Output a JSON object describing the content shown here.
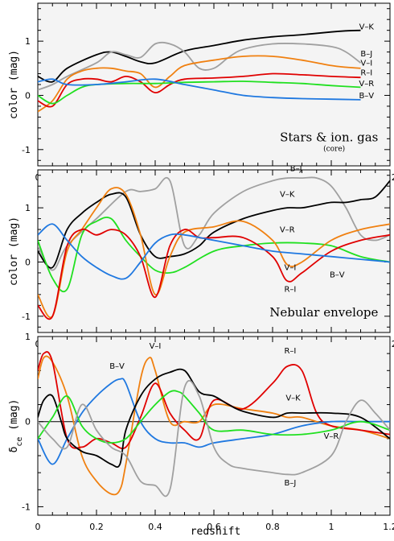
{
  "x_axis_label": "redshift",
  "chart_data": [
    {
      "type": "line",
      "ylabel": "color (mag)",
      "xlim": [
        0,
        1.2
      ],
      "ylim": [
        -1.3,
        1.7
      ],
      "xticks": [
        "0",
        "0.2",
        "0.4",
        "0.6",
        "0.8",
        "1",
        "1.2"
      ],
      "yticks": [
        "-1",
        "0",
        "1"
      ],
      "annotation": "Stars & ion. gas",
      "annotation_sub": "(core)",
      "series": [
        {
          "name": "V–K",
          "color": "#000000",
          "x": [
            0.0,
            0.05,
            0.1,
            0.2,
            0.25,
            0.3,
            0.35,
            0.4,
            0.5,
            0.6,
            0.7,
            0.8,
            0.9,
            1.0,
            1.05,
            1.1
          ],
          "y": [
            0.35,
            0.25,
            0.5,
            0.75,
            0.8,
            0.72,
            0.62,
            0.6,
            0.82,
            0.92,
            1.02,
            1.08,
            1.12,
            1.17,
            1.19,
            1.2
          ]
        },
        {
          "name": "B–J",
          "color": "#a0a0a0",
          "x": [
            0.0,
            0.05,
            0.1,
            0.2,
            0.25,
            0.3,
            0.35,
            0.4,
            0.45,
            0.5,
            0.55,
            0.6,
            0.65,
            0.7,
            0.8,
            0.9,
            1.0,
            1.05,
            1.1
          ],
          "y": [
            0.1,
            0.2,
            0.35,
            0.6,
            0.8,
            0.75,
            0.7,
            0.95,
            0.95,
            0.8,
            0.5,
            0.5,
            0.7,
            0.85,
            0.95,
            0.95,
            0.9,
            0.8,
            0.6
          ]
        },
        {
          "name": "V–I",
          "color": "#f08010",
          "x": [
            0.0,
            0.05,
            0.1,
            0.15,
            0.2,
            0.25,
            0.3,
            0.35,
            0.4,
            0.45,
            0.5,
            0.6,
            0.7,
            0.8,
            0.9,
            1.0,
            1.05,
            1.1
          ],
          "y": [
            -0.3,
            -0.1,
            0.3,
            0.45,
            0.5,
            0.5,
            0.45,
            0.4,
            0.15,
            0.35,
            0.55,
            0.65,
            0.72,
            0.72,
            0.65,
            0.55,
            0.52,
            0.5
          ]
        },
        {
          "name": "R–I",
          "color": "#e00000",
          "x": [
            0.0,
            0.05,
            0.1,
            0.15,
            0.2,
            0.25,
            0.3,
            0.35,
            0.4,
            0.45,
            0.5,
            0.6,
            0.7,
            0.8,
            0.9,
            1.0,
            1.1
          ],
          "y": [
            -0.1,
            -0.2,
            0.2,
            0.3,
            0.3,
            0.25,
            0.35,
            0.25,
            0.05,
            0.2,
            0.3,
            0.32,
            0.35,
            0.4,
            0.38,
            0.35,
            0.33
          ]
        },
        {
          "name": "V–R",
          "color": "#20e020",
          "x": [
            0.0,
            0.05,
            0.1,
            0.15,
            0.2,
            0.3,
            0.4,
            0.5,
            0.6,
            0.7,
            0.8,
            0.9,
            1.0,
            1.1
          ],
          "y": [
            0.0,
            -0.15,
            0.0,
            0.15,
            0.2,
            0.22,
            0.22,
            0.24,
            0.25,
            0.26,
            0.24,
            0.22,
            0.18,
            0.15
          ]
        },
        {
          "name": "B–V",
          "color": "#1f78e0",
          "x": [
            0.0,
            0.05,
            0.1,
            0.2,
            0.3,
            0.4,
            0.5,
            0.6,
            0.7,
            0.8,
            0.9,
            1.0,
            1.1
          ],
          "y": [
            0.25,
            0.3,
            0.2,
            0.2,
            0.25,
            0.3,
            0.2,
            0.1,
            0.0,
            -0.04,
            -0.06,
            -0.07,
            -0.08
          ]
        }
      ]
    },
    {
      "type": "line",
      "ylabel": "color (mag)",
      "xlim": [
        0,
        1.2
      ],
      "ylim": [
        -1.3,
        1.7
      ],
      "xticks": [
        "0",
        "0.2",
        "0.4",
        "0.6",
        "0.8",
        "1",
        "1.2"
      ],
      "yticks": [
        "-1",
        "0",
        "1"
      ],
      "annotation": "Nebular envelope",
      "series": [
        {
          "name": "B–J",
          "color": "#a0a0a0",
          "x": [
            0.0,
            0.05,
            0.1,
            0.2,
            0.3,
            0.35,
            0.4,
            0.45,
            0.5,
            0.55,
            0.6,
            0.7,
            0.8,
            0.85,
            0.9,
            0.95,
            1.0,
            1.05,
            1.1,
            1.15,
            1.2
          ],
          "y": [
            0.3,
            -0.15,
            0.3,
            0.8,
            1.3,
            1.3,
            1.35,
            1.5,
            0.3,
            0.5,
            0.9,
            1.3,
            1.5,
            1.55,
            1.55,
            1.55,
            1.4,
            1.0,
            0.5,
            0.4,
            0.5
          ]
        },
        {
          "name": "V–K",
          "color": "#000000",
          "x": [
            0.0,
            0.05,
            0.1,
            0.15,
            0.2,
            0.25,
            0.3,
            0.35,
            0.4,
            0.45,
            0.5,
            0.55,
            0.6,
            0.7,
            0.8,
            0.85,
            0.9,
            0.95,
            1.0,
            1.05,
            1.1,
            1.15,
            1.2
          ],
          "y": [
            0.2,
            -0.1,
            0.6,
            0.9,
            1.1,
            1.25,
            1.2,
            0.5,
            0.1,
            0.1,
            0.15,
            0.3,
            0.55,
            0.8,
            0.95,
            1.0,
            1.0,
            1.05,
            1.1,
            1.1,
            1.15,
            1.2,
            1.5
          ]
        },
        {
          "name": "V–R",
          "color": "#20e020",
          "x": [
            0.0,
            0.05,
            0.1,
            0.15,
            0.2,
            0.25,
            0.3,
            0.35,
            0.4,
            0.45,
            0.5,
            0.6,
            0.7,
            0.8,
            0.9,
            1.0,
            1.1,
            1.2
          ],
          "y": [
            0.4,
            -0.3,
            -0.5,
            0.5,
            0.75,
            0.8,
            0.4,
            0.1,
            -0.15,
            -0.2,
            -0.1,
            0.2,
            0.3,
            0.35,
            0.35,
            0.3,
            0.1,
            0.0
          ]
        },
        {
          "name": "V–I",
          "color": "#f08010",
          "x": [
            0.0,
            0.05,
            0.1,
            0.15,
            0.2,
            0.25,
            0.3,
            0.35,
            0.4,
            0.45,
            0.5,
            0.6,
            0.7,
            0.8,
            0.85,
            0.9,
            1.0,
            1.1,
            1.2
          ],
          "y": [
            -0.6,
            -1.0,
            0.2,
            0.6,
            1.0,
            1.35,
            1.25,
            0.5,
            -0.6,
            0.1,
            0.55,
            0.65,
            0.75,
            0.4,
            -0.05,
            0.0,
            0.4,
            0.6,
            0.7
          ]
        },
        {
          "name": "R–I",
          "color": "#e00000",
          "x": [
            0.0,
            0.05,
            0.1,
            0.15,
            0.2,
            0.25,
            0.3,
            0.35,
            0.4,
            0.45,
            0.5,
            0.55,
            0.6,
            0.7,
            0.8,
            0.85,
            0.9,
            1.0,
            1.1,
            1.2
          ],
          "y": [
            -0.8,
            -1.0,
            0.3,
            0.6,
            0.5,
            0.6,
            0.5,
            0.1,
            -0.65,
            0.3,
            0.6,
            0.45,
            0.45,
            0.45,
            0.1,
            -0.35,
            -0.2,
            0.2,
            0.4,
            0.5
          ]
        },
        {
          "name": "B–V",
          "color": "#1f78e0",
          "x": [
            0.0,
            0.05,
            0.1,
            0.15,
            0.2,
            0.25,
            0.3,
            0.35,
            0.4,
            0.45,
            0.5,
            0.6,
            0.7,
            0.8,
            0.9,
            1.0,
            1.1,
            1.2
          ],
          "y": [
            0.5,
            0.7,
            0.4,
            0.1,
            -0.1,
            -0.25,
            -0.3,
            0.0,
            0.35,
            0.5,
            0.5,
            0.4,
            0.3,
            0.2,
            0.15,
            0.1,
            0.05,
            0.0
          ]
        }
      ]
    },
    {
      "type": "line",
      "ylabel": "δce (mag)",
      "ylabel_main": "δ",
      "ylabel_sub": "ce",
      "ylabel_rest": " (mag)",
      "xlim": [
        0,
        1.2
      ],
      "ylim": [
        -1.1,
        1.0
      ],
      "xticks": [
        "0",
        "0.2",
        "0.4",
        "0.6",
        "0.8",
        "1",
        "1.2"
      ],
      "yticks": [
        "-1",
        "0",
        "1"
      ],
      "hline": 0,
      "series": [
        {
          "name": "V–I",
          "color": "#f08010",
          "x": [
            0.0,
            0.02,
            0.05,
            0.1,
            0.15,
            0.2,
            0.25,
            0.28,
            0.3,
            0.35,
            0.38,
            0.4,
            0.45,
            0.5,
            0.55,
            0.6,
            0.7,
            0.8,
            0.85,
            0.9,
            1.0,
            1.1,
            1.2
          ],
          "y": [
            0.5,
            0.75,
            0.7,
            0.3,
            -0.4,
            -0.7,
            -0.85,
            -0.8,
            -0.5,
            0.5,
            0.75,
            0.6,
            0.0,
            0.0,
            0.0,
            0.2,
            0.15,
            0.1,
            0.05,
            0.05,
            -0.05,
            -0.1,
            -0.2
          ]
        },
        {
          "name": "R–I",
          "color": "#e00000",
          "x": [
            0.0,
            0.02,
            0.05,
            0.1,
            0.15,
            0.2,
            0.25,
            0.3,
            0.35,
            0.4,
            0.45,
            0.5,
            0.55,
            0.6,
            0.7,
            0.8,
            0.85,
            0.9,
            0.95,
            1.0,
            1.1,
            1.2
          ],
          "y": [
            0.6,
            0.8,
            0.7,
            -0.2,
            -0.3,
            -0.2,
            -0.25,
            -0.3,
            0.05,
            0.45,
            0.1,
            -0.1,
            -0.2,
            0.25,
            0.15,
            0.45,
            0.65,
            0.6,
            0.1,
            -0.05,
            -0.1,
            -0.15
          ]
        },
        {
          "name": "B–V",
          "color": "#1f78e0",
          "x": [
            0.0,
            0.05,
            0.1,
            0.15,
            0.2,
            0.25,
            0.28,
            0.3,
            0.35,
            0.4,
            0.45,
            0.5,
            0.55,
            0.6,
            0.7,
            0.8,
            0.9,
            1.0,
            1.1,
            1.2
          ],
          "y": [
            -0.2,
            -0.5,
            -0.2,
            0.1,
            0.3,
            0.45,
            0.5,
            0.45,
            0.0,
            -0.2,
            -0.25,
            -0.25,
            -0.3,
            -0.25,
            -0.2,
            -0.15,
            -0.05,
            0.0,
            0.0,
            0.0
          ]
        },
        {
          "name": "V–K",
          "color": "#000000",
          "x": [
            0.0,
            0.02,
            0.05,
            0.08,
            0.1,
            0.15,
            0.2,
            0.25,
            0.28,
            0.3,
            0.35,
            0.4,
            0.45,
            0.5,
            0.55,
            0.6,
            0.65,
            0.7,
            0.8,
            0.85,
            0.9,
            1.0,
            1.1,
            1.2
          ],
          "y": [
            0.05,
            0.25,
            0.3,
            0.0,
            -0.2,
            -0.35,
            -0.4,
            -0.5,
            -0.5,
            -0.1,
            0.3,
            0.5,
            0.58,
            0.6,
            0.35,
            0.3,
            0.2,
            0.12,
            0.05,
            0.1,
            0.1,
            0.1,
            0.05,
            -0.2
          ]
        },
        {
          "name": "V–R",
          "color": "#20e020",
          "x": [
            0.0,
            0.05,
            0.1,
            0.15,
            0.2,
            0.25,
            0.3,
            0.35,
            0.4,
            0.45,
            0.48,
            0.5,
            0.55,
            0.6,
            0.7,
            0.8,
            0.9,
            1.0,
            1.1,
            1.2
          ],
          "y": [
            -0.2,
            0.05,
            0.3,
            -0.05,
            -0.2,
            -0.25,
            -0.2,
            0.0,
            0.2,
            0.35,
            0.35,
            0.3,
            0.1,
            -0.1,
            -0.1,
            -0.15,
            -0.15,
            -0.1,
            0.0,
            -0.1
          ]
        },
        {
          "name": "B–J",
          "color": "#a0a0a0",
          "x": [
            0.0,
            0.05,
            0.1,
            0.15,
            0.2,
            0.25,
            0.3,
            0.35,
            0.4,
            0.45,
            0.5,
            0.55,
            0.6,
            0.65,
            0.7,
            0.8,
            0.85,
            0.9,
            1.0,
            1.05,
            1.1,
            1.15,
            1.2
          ],
          "y": [
            0.0,
            -0.2,
            -0.3,
            0.2,
            -0.1,
            -0.3,
            -0.4,
            -0.7,
            -0.75,
            -0.8,
            0.4,
            0.3,
            -0.3,
            -0.5,
            -0.55,
            -0.6,
            -0.62,
            -0.6,
            -0.4,
            0.0,
            0.25,
            0.1,
            -0.1
          ]
        }
      ]
    }
  ]
}
